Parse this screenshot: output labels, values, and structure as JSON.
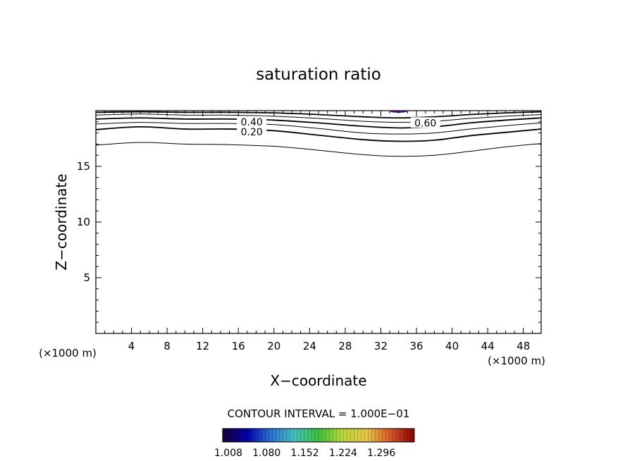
{
  "chart_data": {
    "type": "contour",
    "title": "saturation ratio",
    "xlabel": "X−coordinate",
    "ylabel": "Z−coordinate",
    "x_unit_left": "(×1000 m)",
    "x_unit_right": "(×1000 m)",
    "xlim": [
      0,
      50
    ],
    "ylim": [
      0,
      20
    ],
    "x_ticks": [
      4,
      8,
      12,
      16,
      20,
      24,
      28,
      32,
      36,
      40,
      44,
      48
    ],
    "y_ticks": [
      5,
      10,
      15
    ],
    "x_minor_step": 1,
    "y_minor_step": 1,
    "contour_interval_text": "CONTOUR INTERVAL = 1.000E−01",
    "colorbar_labels": [
      "1.008",
      "1.080",
      "1.152",
      "1.224",
      "1.296"
    ],
    "colorbar_colors": [
      "#1a0033",
      "#0000aa",
      "#2e6fd6",
      "#45c0c0",
      "#3fbf3f",
      "#b9d93a",
      "#e8c848",
      "#d65a2a",
      "#8a0000"
    ],
    "contour_line_x": [
      0,
      5,
      10,
      15,
      20,
      25,
      30,
      34,
      38,
      42,
      46,
      50
    ],
    "contour_lines": [
      {
        "level": 0.1,
        "heavy": false,
        "z": [
          16.9,
          17.15,
          17.0,
          16.95,
          16.8,
          16.45,
          16.05,
          15.9,
          16.0,
          16.35,
          16.75,
          17.05
        ]
      },
      {
        "level": 0.2,
        "heavy": true,
        "z": [
          18.3,
          18.55,
          18.35,
          18.35,
          18.2,
          17.8,
          17.4,
          17.25,
          17.35,
          17.75,
          18.05,
          18.35
        ]
      },
      {
        "level": 0.3,
        "heavy": false,
        "z": [
          18.8,
          18.95,
          18.85,
          18.85,
          18.75,
          18.4,
          18.0,
          17.9,
          18.0,
          18.35,
          18.65,
          18.9
        ]
      },
      {
        "level": 0.4,
        "heavy": true,
        "z": [
          19.25,
          19.35,
          19.25,
          19.25,
          19.15,
          18.9,
          18.6,
          18.45,
          18.55,
          18.9,
          19.15,
          19.35
        ]
      },
      {
        "level": 0.5,
        "heavy": false,
        "z": [
          19.6,
          19.7,
          19.6,
          19.6,
          19.5,
          19.3,
          19.05,
          18.95,
          19.05,
          19.3,
          19.5,
          19.65
        ]
      },
      {
        "level": 0.6,
        "heavy": true,
        "z": [
          19.85,
          19.9,
          19.85,
          19.85,
          19.8,
          19.65,
          19.45,
          19.35,
          19.45,
          19.65,
          19.8,
          19.9
        ]
      }
    ],
    "contour_labels": [
      {
        "text": "0.40",
        "x": 17.5,
        "z": 19.0
      },
      {
        "text": "0.20",
        "x": 17.5,
        "z": 18.1
      },
      {
        "text": "0.60",
        "x": 37.0,
        "z": 18.9
      }
    ]
  }
}
